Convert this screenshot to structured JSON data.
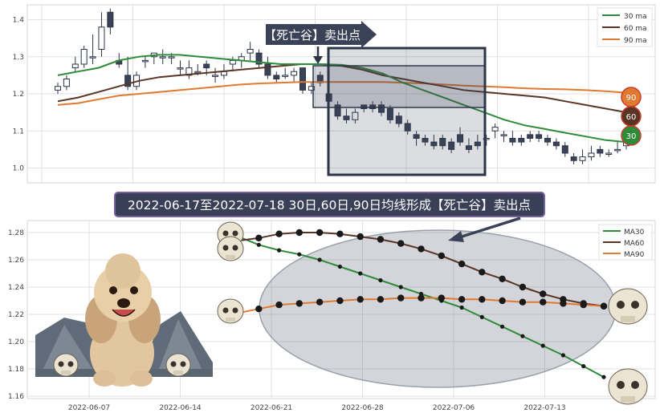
{
  "chart_data": [
    {
      "type": "candlestick",
      "ylim": [
        0.96,
        1.44
      ],
      "yticks": [
        "1.0",
        "1.1",
        "1.2",
        "1.3",
        "1.4"
      ],
      "grid": true,
      "legend": {
        "placement": "top-right",
        "entries": [
          "30 ma",
          "60 ma",
          "90 ma"
        ]
      },
      "colors": {
        "ma30": "#2e8b3a",
        "ma60": "#5a3526",
        "ma90": "#e07a30",
        "down": "#3a4257",
        "up_edge": "#2c3447"
      },
      "series_values": {
        "ma30": [
          1.25,
          1.26,
          1.27,
          1.29,
          1.3,
          1.305,
          1.305,
          1.3,
          1.295,
          1.29,
          1.285,
          1.28,
          1.28,
          1.28,
          1.278,
          1.27,
          1.255,
          1.23,
          1.21,
          1.19,
          1.17,
          1.15,
          1.13,
          1.115,
          1.105,
          1.095,
          1.085,
          1.075,
          1.07
        ],
        "ma60": [
          1.18,
          1.19,
          1.205,
          1.22,
          1.235,
          1.245,
          1.25,
          1.255,
          1.26,
          1.265,
          1.27,
          1.275,
          1.28,
          1.28,
          1.275,
          1.265,
          1.25,
          1.24,
          1.23,
          1.22,
          1.21,
          1.205,
          1.2,
          1.195,
          1.19,
          1.18,
          1.17,
          1.16,
          1.15
        ],
        "ma90": [
          1.17,
          1.175,
          1.185,
          1.195,
          1.2,
          1.205,
          1.21,
          1.215,
          1.22,
          1.225,
          1.228,
          1.23,
          1.232,
          1.232,
          1.232,
          1.232,
          1.232,
          1.23,
          1.228,
          1.225,
          1.222,
          1.22,
          1.218,
          1.215,
          1.213,
          1.212,
          1.21,
          1.207,
          1.203
        ]
      },
      "candles": [
        [
          1.21,
          1.22,
          1.2,
          1.23
        ],
        [
          1.22,
          1.24,
          1.21,
          1.25
        ],
        [
          1.27,
          1.28,
          1.26,
          1.3
        ],
        [
          1.28,
          1.32,
          1.27,
          1.33
        ],
        [
          1.3,
          1.3,
          1.28,
          1.36
        ],
        [
          1.32,
          1.38,
          1.3,
          1.42
        ],
        [
          1.42,
          1.38,
          1.36,
          1.43
        ],
        [
          1.29,
          1.28,
          1.27,
          1.31
        ],
        [
          1.25,
          1.22,
          1.21,
          1.3
        ],
        [
          1.22,
          1.25,
          1.21,
          1.26
        ],
        [
          1.29,
          1.29,
          1.27,
          1.3
        ],
        [
          1.3,
          1.31,
          1.28,
          1.31
        ],
        [
          1.3,
          1.3,
          1.28,
          1.32
        ],
        [
          1.3,
          1.3,
          1.28,
          1.31
        ],
        [
          1.27,
          1.27,
          1.25,
          1.29
        ],
        [
          1.25,
          1.27,
          1.24,
          1.29
        ],
        [
          1.26,
          1.26,
          1.25,
          1.28
        ],
        [
          1.28,
          1.27,
          1.25,
          1.29
        ],
        [
          1.25,
          1.25,
          1.23,
          1.27
        ],
        [
          1.25,
          1.26,
          1.24,
          1.28
        ],
        [
          1.28,
          1.29,
          1.26,
          1.3
        ],
        [
          1.29,
          1.3,
          1.27,
          1.31
        ],
        [
          1.31,
          1.32,
          1.29,
          1.34
        ],
        [
          1.31,
          1.28,
          1.27,
          1.32
        ],
        [
          1.28,
          1.25,
          1.24,
          1.3
        ],
        [
          1.25,
          1.24,
          1.23,
          1.26
        ],
        [
          1.25,
          1.25,
          1.24,
          1.27
        ],
        [
          1.25,
          1.26,
          1.23,
          1.27
        ],
        [
          1.27,
          1.21,
          1.2,
          1.27
        ],
        [
          1.21,
          1.22,
          1.2,
          1.23
        ],
        [
          1.25,
          1.23,
          1.22,
          1.26
        ],
        [
          1.2,
          1.18,
          1.17,
          1.22
        ],
        [
          1.17,
          1.14,
          1.13,
          1.18
        ],
        [
          1.14,
          1.13,
          1.12,
          1.16
        ],
        [
          1.13,
          1.15,
          1.12,
          1.16
        ],
        [
          1.17,
          1.16,
          1.15,
          1.17
        ],
        [
          1.17,
          1.16,
          1.15,
          1.18
        ],
        [
          1.17,
          1.15,
          1.14,
          1.18
        ],
        [
          1.16,
          1.13,
          1.12,
          1.17
        ],
        [
          1.14,
          1.12,
          1.11,
          1.15
        ],
        [
          1.12,
          1.1,
          1.09,
          1.13
        ],
        [
          1.09,
          1.08,
          1.06,
          1.1
        ],
        [
          1.08,
          1.07,
          1.06,
          1.09
        ],
        [
          1.07,
          1.06,
          1.05,
          1.09
        ],
        [
          1.08,
          1.06,
          1.05,
          1.09
        ],
        [
          1.07,
          1.05,
          1.04,
          1.08
        ],
        [
          1.09,
          1.07,
          1.06,
          1.11
        ],
        [
          1.06,
          1.05,
          1.04,
          1.08
        ],
        [
          1.07,
          1.06,
          1.05,
          1.09
        ],
        [
          1.08,
          1.08,
          1.06,
          1.09
        ],
        [
          1.1,
          1.11,
          1.08,
          1.12
        ],
        [
          1.09,
          1.09,
          1.07,
          1.1
        ],
        [
          1.08,
          1.07,
          1.06,
          1.1
        ],
        [
          1.08,
          1.07,
          1.06,
          1.09
        ],
        [
          1.09,
          1.08,
          1.07,
          1.1
        ],
        [
          1.09,
          1.08,
          1.07,
          1.1
        ],
        [
          1.08,
          1.07,
          1.06,
          1.09
        ],
        [
          1.07,
          1.06,
          1.05,
          1.08
        ],
        [
          1.06,
          1.04,
          1.03,
          1.07
        ],
        [
          1.03,
          1.02,
          1.01,
          1.04
        ],
        [
          1.02,
          1.03,
          1.01,
          1.05
        ],
        [
          1.03,
          1.04,
          1.02,
          1.06
        ],
        [
          1.05,
          1.04,
          1.03,
          1.06
        ],
        [
          1.04,
          1.04,
          1.03,
          1.05
        ],
        [
          1.05,
          1.05,
          1.04,
          1.07
        ],
        [
          1.06,
          1.07,
          1.05,
          1.07
        ]
      ],
      "banner": "【死亡谷】卖出点",
      "end_badges": [
        "90",
        "60",
        "30"
      ]
    },
    {
      "type": "line",
      "ylim": [
        1.16,
        1.285
      ],
      "yticks": [
        "1.16",
        "1.18",
        "1.20",
        "1.22",
        "1.24",
        "1.26",
        "1.28"
      ],
      "xticks": [
        "2022-06-07",
        "2022-06-14",
        "2022-06-21",
        "2022-06-28",
        "2022-07-06",
        "2022-07-13"
      ],
      "grid": true,
      "legend": {
        "placement": "top-right",
        "entries": [
          "MA30",
          "MA60",
          "MA90"
        ]
      },
      "series": [
        {
          "name": "MA30",
          "color": "#2e8b3a",
          "values": [
            1.277,
            1.271,
            1.267,
            1.264,
            1.26,
            1.255,
            1.25,
            1.245,
            1.24,
            1.235,
            1.23,
            1.225,
            1.218,
            1.211,
            1.204,
            1.197,
            1.19,
            1.182,
            1.174
          ]
        },
        {
          "name": "MA60",
          "color": "#5a3526",
          "values": [
            1.274,
            1.276,
            1.279,
            1.28,
            1.28,
            1.279,
            1.277,
            1.275,
            1.272,
            1.268,
            1.263,
            1.257,
            1.251,
            1.246,
            1.24,
            1.235,
            1.231,
            1.228,
            1.226
          ]
        },
        {
          "name": "MA90",
          "color": "#e07a30",
          "values": [
            1.221,
            1.224,
            1.227,
            1.228,
            1.229,
            1.23,
            1.231,
            1.231,
            1.232,
            1.232,
            1.232,
            1.231,
            1.231,
            1.23,
            1.229,
            1.229,
            1.228,
            1.227,
            1.226
          ]
        }
      ],
      "banner": "2022-06-17至2022-07-18 30日,60日,90日均线形成【死亡谷】卖出点"
    }
  ]
}
